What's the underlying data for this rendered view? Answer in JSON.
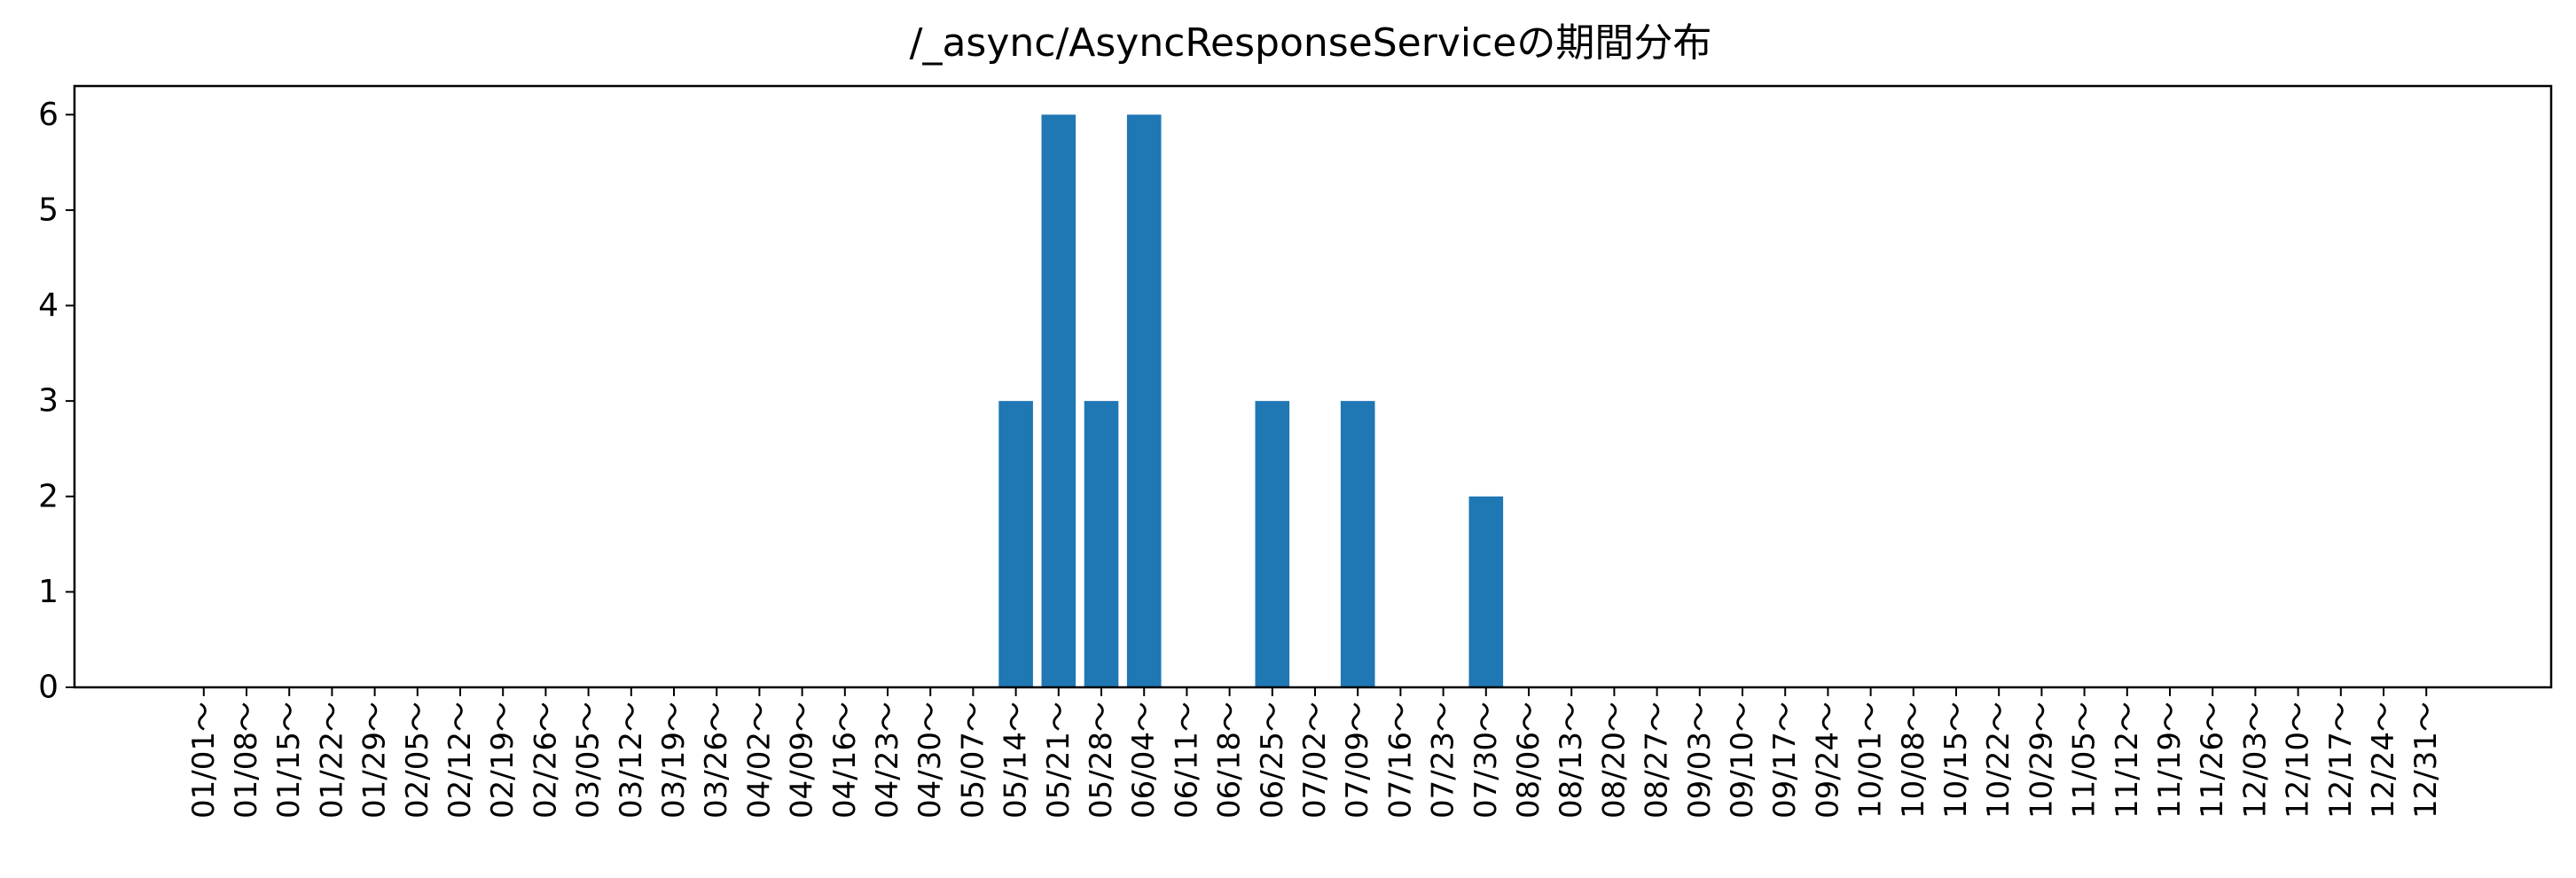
{
  "chart_data": {
    "type": "bar",
    "title": "/_async/AsyncResponseServiceの期間分布",
    "xlabel": "",
    "ylabel": "",
    "categories": [
      "01/01～",
      "01/08～",
      "01/15～",
      "01/22～",
      "01/29～",
      "02/05～",
      "02/12～",
      "02/19～",
      "02/26～",
      "03/05～",
      "03/12～",
      "03/19～",
      "03/26～",
      "04/02～",
      "04/09～",
      "04/16～",
      "04/23～",
      "04/30～",
      "05/07～",
      "05/14～",
      "05/21～",
      "05/28～",
      "06/04～",
      "06/11～",
      "06/18～",
      "06/25～",
      "07/02～",
      "07/09～",
      "07/16～",
      "07/23～",
      "07/30～",
      "08/06～",
      "08/13～",
      "08/20～",
      "08/27～",
      "09/03～",
      "09/10～",
      "09/17～",
      "09/24～",
      "10/01～",
      "10/08～",
      "10/15～",
      "10/22～",
      "10/29～",
      "11/05～",
      "11/12～",
      "11/19～",
      "11/26～",
      "12/03～",
      "12/10～",
      "12/17～",
      "12/24～",
      "12/31～"
    ],
    "values": [
      0,
      0,
      0,
      0,
      0,
      0,
      0,
      0,
      0,
      0,
      0,
      0,
      0,
      0,
      0,
      0,
      0,
      0,
      0,
      3,
      6,
      3,
      6,
      0,
      0,
      3,
      0,
      3,
      0,
      0,
      2,
      0,
      0,
      0,
      0,
      0,
      0,
      0,
      0,
      0,
      0,
      0,
      0,
      0,
      0,
      0,
      0,
      0,
      0,
      0,
      0,
      0,
      0
    ],
    "yticks": [
      0,
      1,
      2,
      3,
      4,
      5,
      6
    ],
    "ylim": [
      0,
      6.3
    ],
    "grid": false,
    "bar_color": "#1f77b4"
  }
}
